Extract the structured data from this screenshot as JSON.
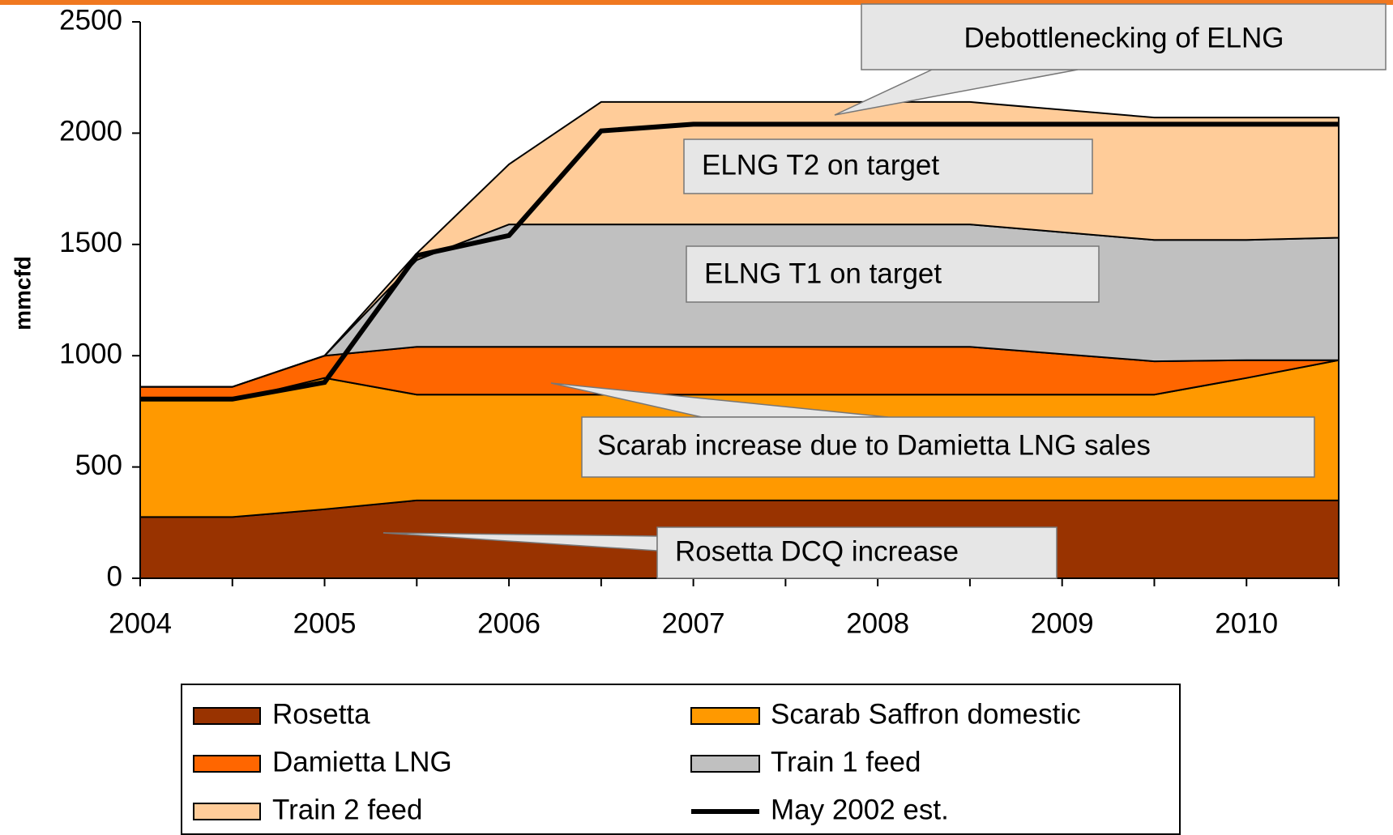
{
  "chart_data": {
    "type": "stacked_area",
    "ylabel": "mmcfd",
    "x": [
      2004,
      2004.5,
      2005,
      2005.5,
      2006,
      2006.5,
      2007,
      2008.5,
      2009.5,
      2010,
      2010.5
    ],
    "xlim": [
      2004,
      2010.5
    ],
    "xticks": [
      2004,
      2005,
      2006,
      2007,
      2008,
      2009,
      2010
    ],
    "xminor_ticks": [
      2004.5,
      2005.5,
      2006.5,
      2007.5,
      2008.5,
      2009.5,
      2010.5
    ],
    "ylim": [
      0,
      2500
    ],
    "yticks": [
      0,
      500,
      1000,
      1500,
      2000,
      2500
    ],
    "series": [
      {
        "name": "Rosetta",
        "color": "#993300",
        "values": [
          275,
          275,
          310,
          350,
          350,
          350,
          350,
          350,
          350,
          350,
          350
        ]
      },
      {
        "name": "Scarab Saffron domestic",
        "color": "#ff9900",
        "values": [
          525,
          525,
          590,
          475,
          475,
          475,
          475,
          475,
          475,
          550,
          630
        ]
      },
      {
        "name": "Damietta LNG",
        "color": "#ff6600",
        "values": [
          60,
          60,
          100,
          215,
          215,
          215,
          215,
          215,
          150,
          80,
          0
        ]
      },
      {
        "name": "Train 1 feed",
        "color": "#c0c0c0",
        "values": [
          0,
          0,
          0,
          390,
          550,
          550,
          550,
          550,
          545,
          540,
          550
        ]
      },
      {
        "name": "Train 2 feed",
        "color": "#ffcc99",
        "values": [
          0,
          0,
          0,
          30,
          270,
          550,
          550,
          550,
          550,
          550,
          540
        ]
      },
      {
        "name": "May 2002 est.",
        "color": "#000000",
        "kind": "line",
        "values": [
          805,
          805,
          880,
          1450,
          1540,
          2010,
          2040,
          2040,
          2040,
          2040,
          2040
        ]
      }
    ],
    "annotations": [
      "Debottlenecking of ELNG",
      "ELNG T2 on target",
      "ELNG T1 on target",
      "Scarab increase due to Damietta LNG sales",
      "Rosetta DCQ increase"
    ]
  }
}
